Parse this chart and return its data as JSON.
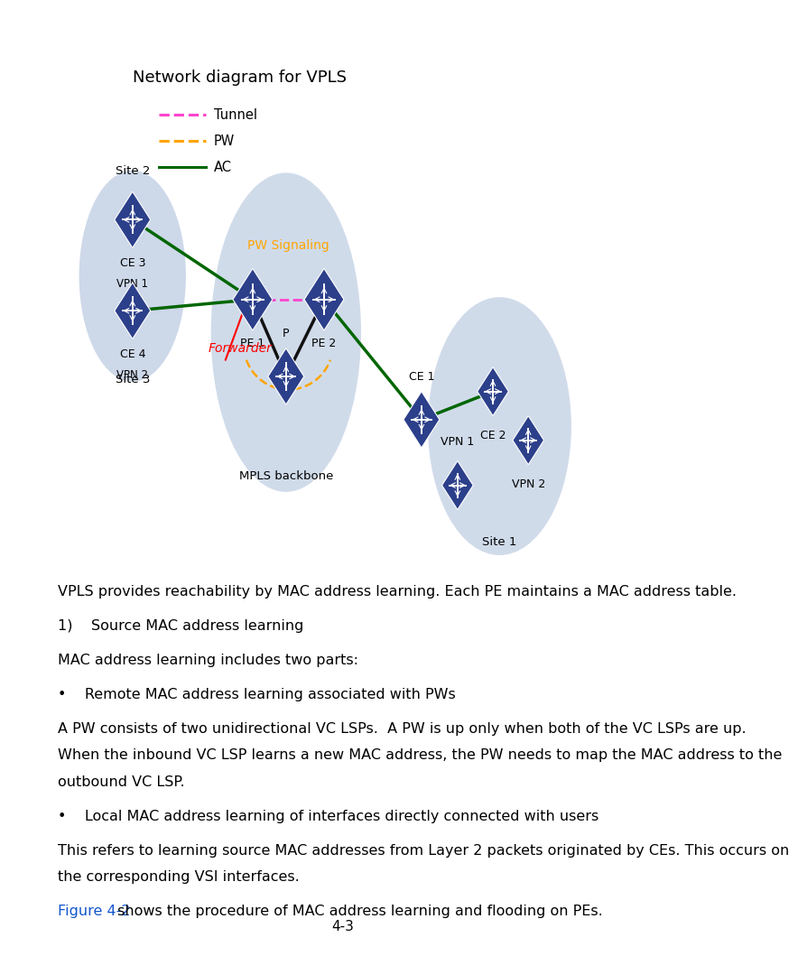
{
  "title": "Network diagram for VPLS",
  "bg_color": "#ffffff",
  "legend_items": [
    {
      "label": "Tunnel",
      "color": "#ff44cc",
      "linestyle": "dashed"
    },
    {
      "label": "PW",
      "color": "#ffa500",
      "linestyle": "dashed"
    },
    {
      "label": "AC",
      "color": "#006600",
      "linestyle": "solid"
    }
  ],
  "page_number": "4-3",
  "forwarder_text": "Forwarder",
  "pw_signaling_text": "PW Signaling",
  "text_lines": [
    {
      "text": "VPLS provides reachability by MAC address learning. Each PE maintains a MAC address table.",
      "style": "normal",
      "extra_before": 0
    },
    {
      "text": "1)    Source MAC address learning",
      "style": "normal",
      "extra_before": 0.008
    },
    {
      "text": "MAC address learning includes two parts:",
      "style": "normal",
      "extra_before": 0.008
    },
    {
      "text": "•    Remote MAC address learning associated with PWs",
      "style": "normal",
      "extra_before": 0.008
    },
    {
      "text": "A PW consists of two unidirectional VC LSPs.  A PW is up only when both of the VC LSPs are up.",
      "style": "normal",
      "extra_before": 0.008
    },
    {
      "text": "When the inbound VC LSP learns a new MAC address, the PW needs to map the MAC address to the",
      "style": "normal",
      "extra_before": 0
    },
    {
      "text": "outbound VC LSP.",
      "style": "normal",
      "extra_before": 0
    },
    {
      "text": "•    Local MAC address learning of interfaces directly connected with users",
      "style": "normal",
      "extra_before": 0.008
    },
    {
      "text": "This refers to learning source MAC addresses from Layer 2 packets originated by CEs. This occurs on",
      "style": "normal",
      "extra_before": 0.008
    },
    {
      "text": "the corresponding VSI interfaces.",
      "style": "normal",
      "extra_before": 0
    },
    {
      "text": "Figure 4-2 shows the procedure of MAC address learning and flooding on PEs.",
      "style": "link",
      "extra_before": 0.008
    }
  ]
}
